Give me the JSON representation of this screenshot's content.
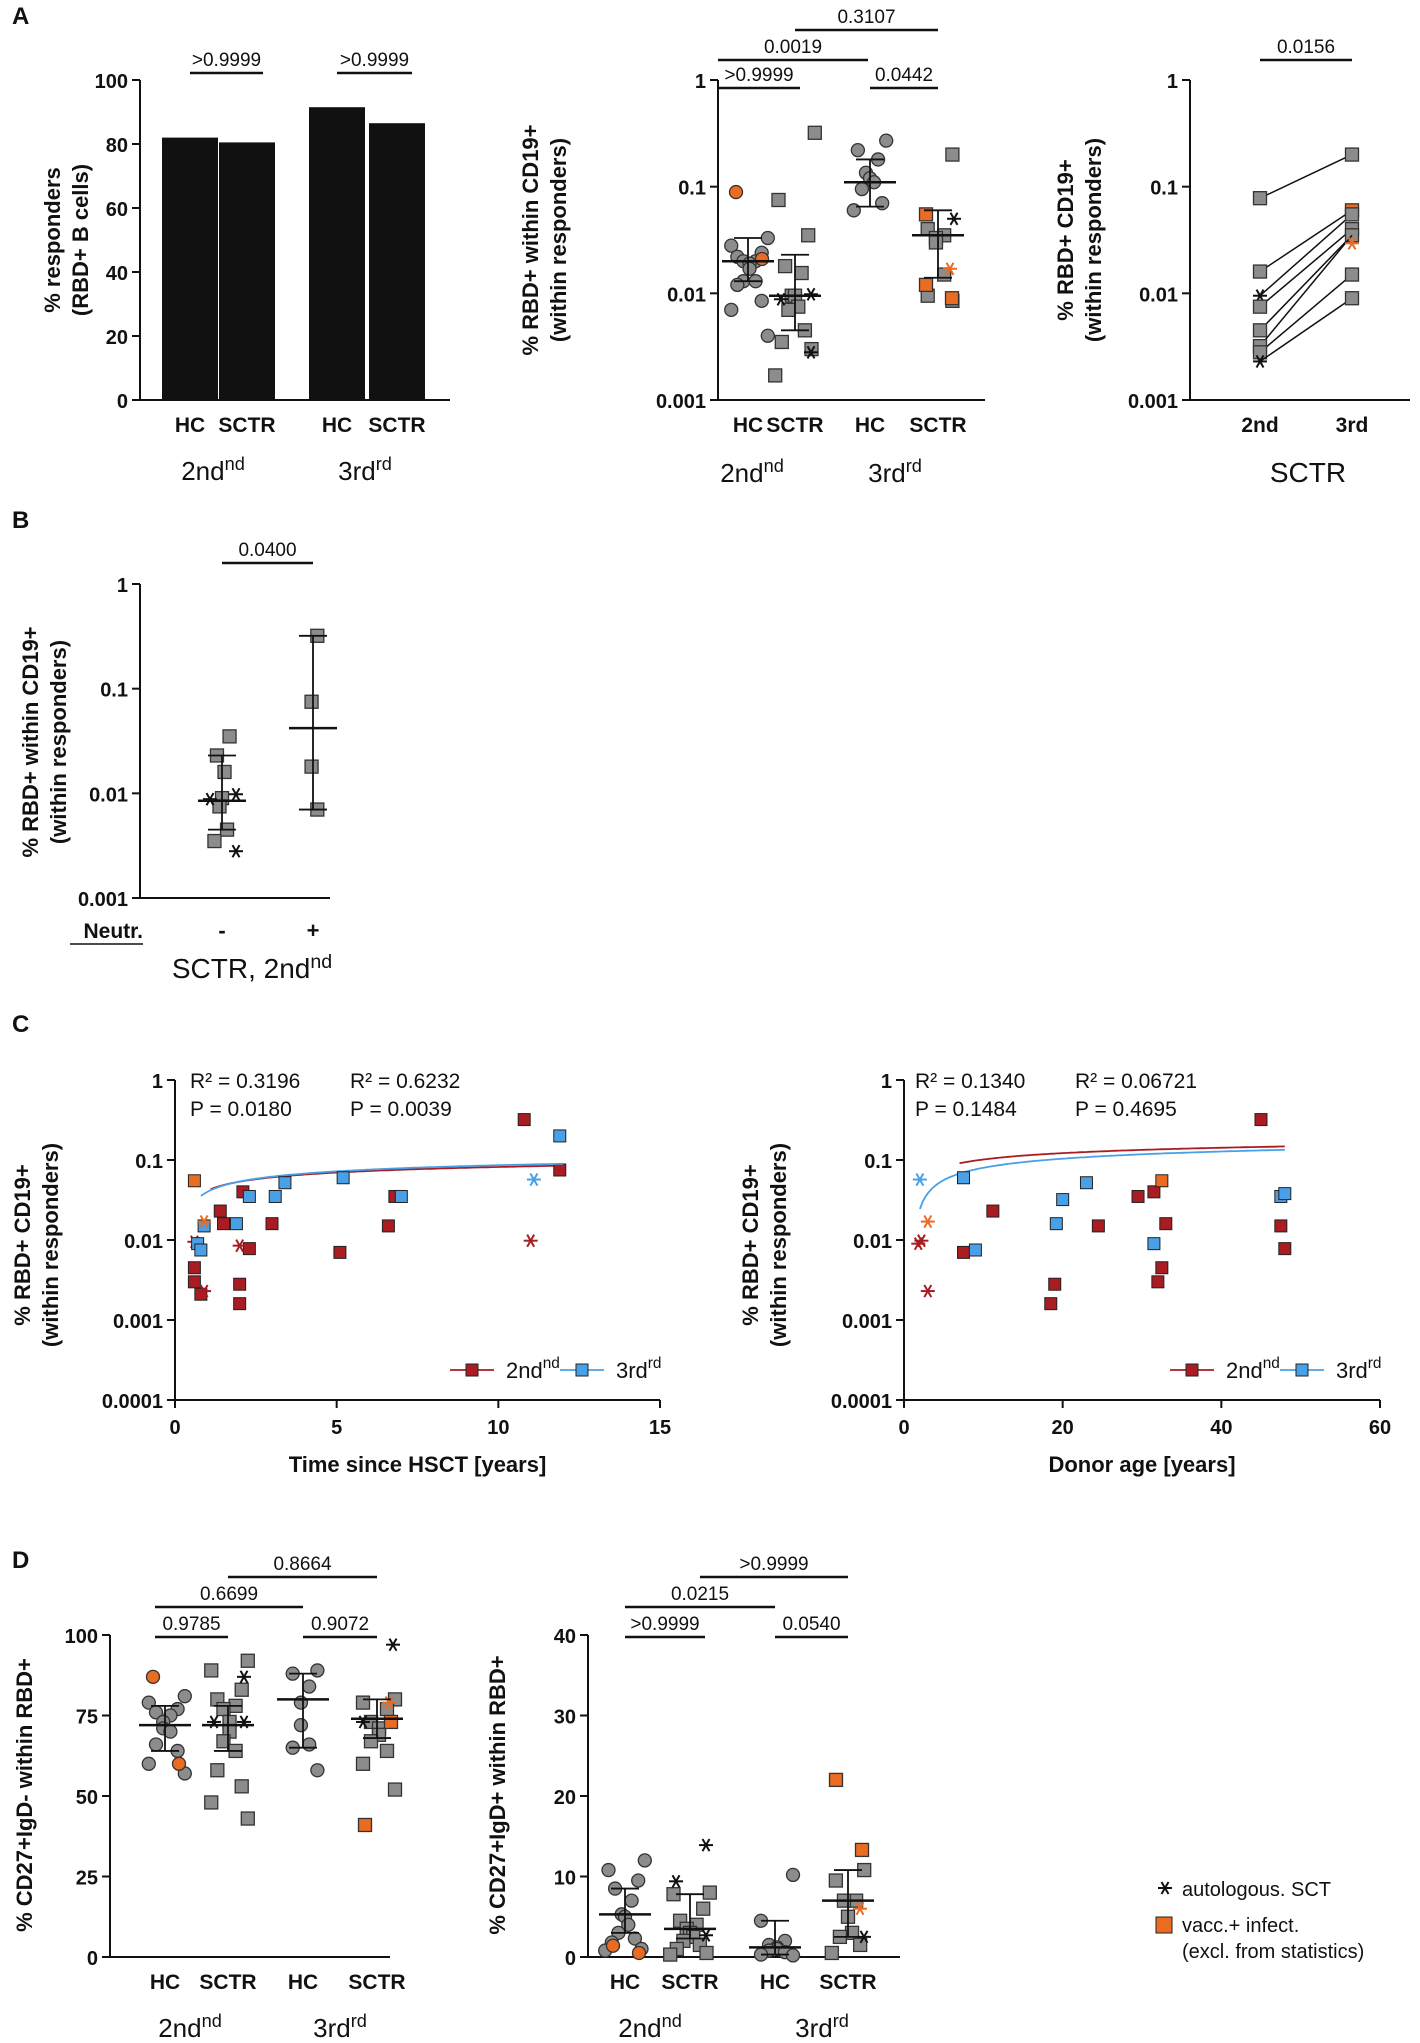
{
  "colors": {
    "black": "#111111",
    "gray": "#8c8c8c",
    "orange": "#ea6b22",
    "red": "#a81c22",
    "blue": "#4aa0e6"
  },
  "panels": {
    "a": "A",
    "b": "B",
    "c": "C",
    "d": "D"
  },
  "chart_data": [
    {
      "id": "A1",
      "type": "bar",
      "ylabel": [
        "% responders",
        "(RBD+ B cells)"
      ],
      "ylim": [
        0,
        100
      ],
      "yticks": [
        "0",
        "20",
        "40",
        "60",
        "80",
        "100"
      ],
      "categories": [
        "HC",
        "SCTR",
        "HC",
        "SCTR"
      ],
      "values": [
        82,
        80.5,
        91.5,
        86.5
      ],
      "groups": [
        "2nd",
        "3rd"
      ],
      "comparisons": [
        {
          "label": ">0.9999"
        },
        {
          "label": ">0.9999"
        }
      ]
    },
    {
      "id": "A2",
      "type": "scatter",
      "scale": "log",
      "ylabel": [
        "% RBD+ within CD19+",
        "(within responders)"
      ],
      "ylim": [
        0.001,
        1
      ],
      "yticks": [
        "0.001",
        "0.01",
        "0.1",
        "1"
      ],
      "categories": [
        "HC",
        "SCTR",
        "HC",
        "SCTR"
      ],
      "groups": [
        "2nd",
        "3rd"
      ],
      "series": [
        {
          "name": "HC 2nd",
          "marker": "circle",
          "median": 0.02,
          "iqr": [
            0.013,
            0.033
          ],
          "values": [
            0.033,
            0.028,
            0.024,
            0.022,
            0.02,
            0.02,
            0.019,
            0.017,
            0.013,
            0.013,
            0.012,
            0.0085,
            0.007,
            0.004
          ],
          "orange": [
            0.089,
            0.021
          ]
        },
        {
          "name": "SCTR 2nd",
          "marker": "square",
          "median": 0.0095,
          "iqr": [
            0.0045,
            0.023
          ],
          "values": [
            0.32,
            0.075,
            0.035,
            0.018,
            0.0155,
            0.0095,
            0.0095,
            0.0075,
            0.007,
            0.0045,
            0.0035,
            0.003,
            0.0017
          ],
          "stars": [
            0.0098,
            0.0088,
            0.0028
          ]
        },
        {
          "name": "HC 3rd",
          "marker": "circle",
          "median": 0.11,
          "iqr": [
            0.065,
            0.18
          ],
          "values": [
            0.27,
            0.22,
            0.18,
            0.135,
            0.12,
            0.11,
            0.095,
            0.07,
            0.06
          ]
        },
        {
          "name": "SCTR 3rd",
          "marker": "square",
          "median": 0.035,
          "iqr": [
            0.014,
            0.06
          ],
          "values": [
            0.2,
            0.04,
            0.035,
            0.033,
            0.03,
            0.015,
            0.0095,
            0.0085
          ],
          "stars": [
            0.05
          ],
          "orange": [
            0.055,
            0.009,
            0.012
          ],
          "orange_stars": [
            0.017
          ]
        }
      ],
      "comparisons": [
        {
          "label": "0.3107"
        },
        {
          "label": "0.0019"
        },
        {
          "label": ">0.9999"
        },
        {
          "label": "0.0442"
        }
      ]
    },
    {
      "id": "A3",
      "type": "line",
      "scale": "log",
      "ylabel": [
        "% RBD+ CD19+",
        "(within responders)"
      ],
      "ylim": [
        0.001,
        1
      ],
      "yticks": [
        "0.001",
        "0.01",
        "0.1",
        "1"
      ],
      "categories": [
        "2nd",
        "3rd"
      ],
      "xgroup": "SCTR",
      "pairs": [
        [
          0.078,
          0.2
        ],
        [
          0.016,
          0.06
        ],
        [
          0.0095,
          0.055
        ],
        [
          0.0075,
          0.04
        ],
        [
          0.0045,
          0.035
        ],
        [
          0.0032,
          0.035
        ],
        [
          0.0028,
          0.015
        ],
        [
          0.0023,
          0.009
        ]
      ],
      "comparisons": [
        {
          "label": "0.0156"
        }
      ]
    },
    {
      "id": "B",
      "type": "scatter",
      "scale": "log",
      "ylabel": [
        "% RBD+ within CD19+",
        "(within responders)"
      ],
      "ylim": [
        0.001,
        1
      ],
      "yticks": [
        "0.001",
        "0.01",
        "0.1",
        "1"
      ],
      "categories": [
        "-",
        "+"
      ],
      "xheader": "Neutr.",
      "xgroup": "SCTR, 2nd",
      "series": [
        {
          "name": "Neutr. -",
          "median": 0.0085,
          "iqr": [
            0.0045,
            0.023
          ],
          "values": [
            0.035,
            0.023,
            0.016,
            0.009,
            0.0075,
            0.0045,
            0.0035
          ],
          "stars": [
            0.0098,
            0.0088,
            0.0028
          ]
        },
        {
          "name": "Neutr. +",
          "median": 0.042,
          "iqr": [
            0.007,
            0.32
          ],
          "values": [
            0.32,
            0.075,
            0.018,
            0.007
          ]
        }
      ],
      "comparisons": [
        {
          "label": "0.0400"
        }
      ]
    },
    {
      "id": "C1",
      "type": "scatter",
      "scale": "log",
      "xlabel": "Time since HSCT [years]",
      "ylabel": [
        "% RBD+ CD19+",
        "(within responders)"
      ],
      "xlim": [
        0,
        15
      ],
      "ylim": [
        0.0001,
        1
      ],
      "xticks": [
        "0",
        "5",
        "10",
        "15"
      ],
      "yticks": [
        "0.0001",
        "0.001",
        "0.01",
        "0.1",
        "1"
      ],
      "stats": {
        "r2_2nd": "R² = 0.3196",
        "p_2nd": "P  = 0.0180",
        "r2_3rd": "R² = 0.6232",
        "p_3rd": "P  = 0.0039"
      },
      "legend": {
        "s2": "2nd",
        "s3": "3rd"
      },
      "series": [
        {
          "name": "2nd",
          "color": "red",
          "points": [
            [
              0.6,
              0.0045
            ],
            [
              0.6,
              0.003
            ],
            [
              0.8,
              0.0021
            ],
            [
              1.4,
              0.023
            ],
            [
              1.5,
              0.016
            ],
            [
              2,
              0.0028
            ],
            [
              2,
              0.0016
            ],
            [
              2.1,
              0.04
            ],
            [
              2.3,
              0.0078
            ],
            [
              3,
              0.016
            ],
            [
              5.1,
              0.007
            ],
            [
              6.6,
              0.015
            ],
            [
              6.8,
              0.035
            ],
            [
              10.8,
              0.32
            ],
            [
              11.9,
              0.075
            ]
          ],
          "stars": [
            [
              0.6,
              0.0095
            ],
            [
              0.9,
              0.0023
            ],
            [
              2,
              0.0085
            ],
            [
              11,
              0.0098
            ]
          ],
          "fit": {
            "a": 0.0175,
            "b": 0.0415,
            "x0": 1.1
          }
        },
        {
          "name": "3rd",
          "color": "blue",
          "points": [
            [
              0.7,
              0.009
            ],
            [
              0.8,
              0.0075
            ],
            [
              0.9,
              0.015
            ],
            [
              1.9,
              0.016
            ],
            [
              2.3,
              0.035
            ],
            [
              3.1,
              0.035
            ],
            [
              3.4,
              0.052
            ],
            [
              5.2,
              0.06
            ],
            [
              7,
              0.035
            ],
            [
              11.9,
              0.2
            ]
          ],
          "stars": [
            [
              11.1,
              0.057
            ]
          ],
          "orange": [
            [
              0.6,
              0.055
            ]
          ],
          "orange_stars": [
            [
              0.9,
              0.017
            ]
          ],
          "fit": {
            "a": 0.02,
            "b": 0.04,
            "x0": 0.8
          }
        }
      ]
    },
    {
      "id": "C2",
      "type": "scatter",
      "scale": "log",
      "xlabel": "Donor age [years]",
      "ylabel": [
        "% RBD+ CD19+",
        "(within responders)"
      ],
      "xlim": [
        0,
        60
      ],
      "ylim": [
        0.0001,
        1
      ],
      "xticks": [
        "0",
        "20",
        "40",
        "60"
      ],
      "yticks": [
        "0.0001",
        "0.001",
        "0.01",
        "0.1",
        "1"
      ],
      "stats": {
        "r2_2nd": "R² = 0.1340",
        "p_2nd": "P  = 0.1484",
        "r2_3rd": "R² = 0.06721",
        "p_3rd": "P  = 0.4695"
      },
      "legend": {
        "s2": "2nd",
        "s3": "3rd"
      },
      "series": [
        {
          "name": "2nd",
          "color": "red",
          "points": [
            [
              7.5,
              0.007
            ],
            [
              11.2,
              0.023
            ],
            [
              18.5,
              0.0016
            ],
            [
              19,
              0.0028
            ],
            [
              24.5,
              0.015
            ],
            [
              29.5,
              0.035
            ],
            [
              31.5,
              0.04
            ],
            [
              32,
              0.003
            ],
            [
              32.5,
              0.0045
            ],
            [
              33,
              0.016
            ],
            [
              45,
              0.32
            ],
            [
              47.5,
              0.015
            ],
            [
              48,
              0.0078
            ]
          ],
          "stars": [
            [
              1.8,
              0.009
            ],
            [
              2.2,
              0.0098
            ],
            [
              3,
              0.0023
            ]
          ],
          "fit": {
            "a": 0.0295,
            "b": 0.0335,
            "x0": 7
          }
        },
        {
          "name": "3rd",
          "color": "blue",
          "points": [
            [
              7.5,
              0.06
            ],
            [
              9,
              0.0075
            ],
            [
              19.2,
              0.016
            ],
            [
              20,
              0.032
            ],
            [
              23,
              0.052
            ],
            [
              31.5,
              0.009
            ],
            [
              47.5,
              0.035
            ],
            [
              48,
              0.038
            ]
          ],
          "stars": [
            [
              2,
              0.057
            ]
          ],
          "orange": [
            [
              32.5,
              0.055
            ]
          ],
          "orange_stars": [
            [
              3,
              0.017
            ]
          ],
          "fit": {
            "a": 0.0345,
            "b": 0.0005,
            "x0": 2
          }
        }
      ]
    },
    {
      "id": "D1",
      "type": "scatter",
      "ylabel": "% CD27+IgD- within RBD+",
      "ylim": [
        0,
        100
      ],
      "yticks": [
        "0",
        "25",
        "50",
        "75",
        "100"
      ],
      "categories": [
        "HC",
        "SCTR",
        "HC",
        "SCTR"
      ],
      "groups": [
        "2nd",
        "3rd"
      ],
      "series": [
        {
          "name": "HC 2nd",
          "marker": "circle",
          "median": 72,
          "iqr": [
            64,
            78
          ],
          "values": [
            81,
            79,
            77,
            76,
            75,
            73,
            71,
            70,
            66,
            64,
            60,
            57
          ],
          "orange": [
            87,
            60
          ]
        },
        {
          "name": "SCTR 2nd",
          "marker": "square",
          "median": 72,
          "iqr": [
            64,
            78
          ],
          "values": [
            92,
            89,
            83,
            80,
            78,
            77,
            73,
            70,
            67,
            64,
            58,
            53,
            48,
            43
          ],
          "stars": [
            87,
            73,
            73
          ]
        },
        {
          "name": "HC 3rd",
          "marker": "circle",
          "median": 80,
          "iqr": [
            65,
            88
          ],
          "values": [
            89,
            88,
            84,
            79,
            72,
            66,
            65,
            58
          ]
        },
        {
          "name": "SCTR 3rd",
          "marker": "square",
          "median": 74,
          "iqr": [
            68,
            80
          ],
          "values": [
            80,
            79,
            77,
            73,
            71,
            69,
            67,
            64,
            60,
            52
          ],
          "stars": [
            97,
            73
          ],
          "orange": [
            41,
            73
          ],
          "orange_stars": [
            79
          ]
        }
      ],
      "comparisons": [
        {
          "label": "0.8664"
        },
        {
          "label": "0.6699"
        },
        {
          "label": "0.9785"
        },
        {
          "label": "0.9072"
        }
      ]
    },
    {
      "id": "D2",
      "type": "scatter",
      "ylabel": "% CD27+IgD+ within RBD+",
      "ylim": [
        0,
        40
      ],
      "yticks": [
        "0",
        "10",
        "20",
        "30",
        "40"
      ],
      "categories": [
        "HC",
        "SCTR",
        "HC",
        "SCTR"
      ],
      "groups": [
        "2nd",
        "3rd"
      ],
      "series": [
        {
          "name": "HC 2nd",
          "marker": "circle",
          "median": 5.3,
          "iqr": [
            3,
            8.5
          ],
          "values": [
            12,
            10.8,
            9.5,
            8.5,
            7,
            5.3,
            5,
            4,
            3,
            2.3,
            1.8,
            1,
            0.8
          ],
          "orange": [
            1.4,
            0.5
          ]
        },
        {
          "name": "SCTR 2nd",
          "marker": "square",
          "median": 3.5,
          "iqr": [
            2.3,
            7.8
          ],
          "values": [
            8,
            7.8,
            6,
            4.5,
            4,
            3.5,
            3,
            2.5,
            2,
            1.5,
            1,
            0.5,
            0.3
          ],
          "stars": [
            13.9,
            9.4,
            2.7
          ]
        },
        {
          "name": "HC 3rd",
          "marker": "circle",
          "median": 1.2,
          "iqr": [
            0.3,
            4.5
          ],
          "values": [
            10.2,
            4.5,
            2,
            1.5,
            1.2,
            1,
            0.8,
            0.6,
            0.3,
            0.2
          ]
        },
        {
          "name": "SCTR 3rd",
          "marker": "square",
          "median": 7,
          "iqr": [
            2.5,
            10.8
          ],
          "values": [
            10.8,
            9.5,
            7,
            7,
            5,
            3,
            2.5,
            1.5,
            0.5
          ],
          "stars": [
            2.5
          ],
          "orange": [
            22,
            13.3
          ],
          "orange_stars": [
            6
          ]
        }
      ],
      "comparisons": [
        {
          "label": ">0.9999"
        },
        {
          "label": "0.0215"
        },
        {
          "label": ">0.9999"
        },
        {
          "label": "0.0540"
        }
      ]
    }
  ],
  "legend_bottom": {
    "star": "autologous. SCT",
    "orange_line1": "vacc.+ infect.",
    "orange_line2": "(excl. from statistics)"
  }
}
